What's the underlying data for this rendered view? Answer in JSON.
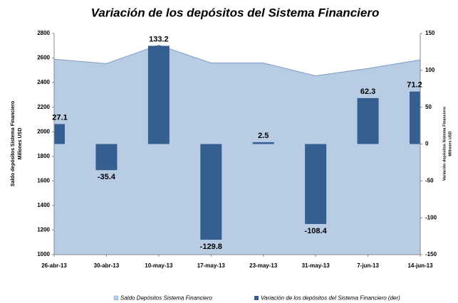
{
  "chart_data": {
    "type": "bar",
    "title": "Variación de los depósitos del Sistema Financiero",
    "ylabel": [
      "Saldo depósitos Sistema Financiero",
      "Millones USD"
    ],
    "y2label": [
      "Variación depósitos Sistema Financiero",
      "Millones USD"
    ],
    "categories": [
      "26-abr-13",
      "30-abr-13",
      "10-may-13",
      "17-may-13",
      "23-may-13",
      "31-may-13",
      "7-jun-13",
      "14-jun-13"
    ],
    "series": [
      {
        "name": "Saldo Depósitos Sistema Financiero",
        "type": "area",
        "axis": "y",
        "color": "#b8cce4",
        "values": [
          2590,
          2555,
          2705,
          2560,
          2560,
          2455,
          2515,
          2585
        ]
      },
      {
        "name": "Variación de los depósitos del Sistema Financiero (der)",
        "type": "bar",
        "axis": "y2",
        "color": "#365f91",
        "values": [
          27.1,
          -35.4,
          133.2,
          -129.8,
          2.5,
          -108.4,
          62.3,
          71.2
        ]
      }
    ],
    "ylim": [
      1000,
      2800
    ],
    "yticks": [
      1000,
      1200,
      1400,
      1600,
      1800,
      2000,
      2200,
      2400,
      2600,
      2800
    ],
    "y2lim": [
      -150,
      150
    ],
    "y2ticks": [
      -150,
      -100,
      -50,
      0,
      50,
      100,
      150
    ],
    "legend": "bottom"
  }
}
